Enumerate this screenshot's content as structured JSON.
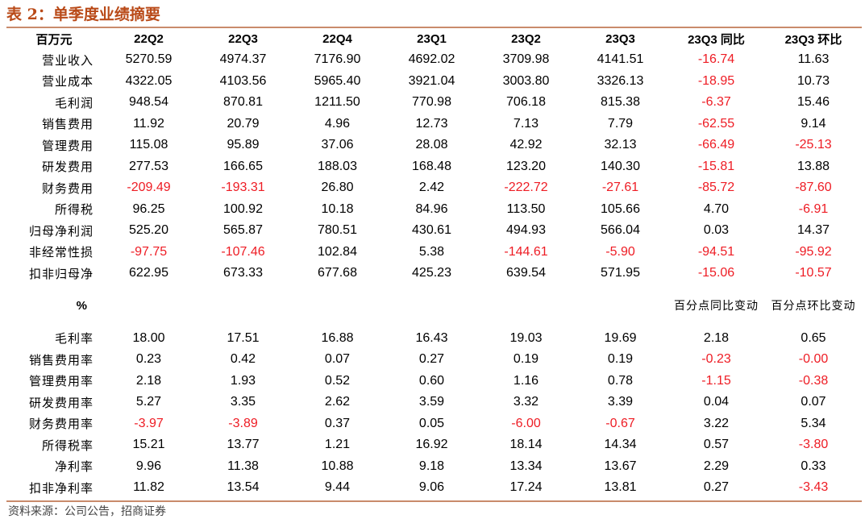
{
  "title": "表 2：单季度业绩摘要",
  "unit_label": "百万元",
  "columns": [
    "22Q2",
    "22Q3",
    "22Q4",
    "23Q1",
    "23Q2",
    "23Q3",
    "23Q3 同比",
    "23Q3 环比"
  ],
  "rows": [
    {
      "label": "营业收入",
      "values": [
        "5270.59",
        "4974.37",
        "7176.90",
        "4692.02",
        "3709.98",
        "4141.51",
        "-16.74",
        "11.63"
      ]
    },
    {
      "label": "营业成本",
      "values": [
        "4322.05",
        "4103.56",
        "5965.40",
        "3921.04",
        "3003.80",
        "3326.13",
        "-18.95",
        "10.73"
      ]
    },
    {
      "label": "毛利润",
      "values": [
        "948.54",
        "870.81",
        "1211.50",
        "770.98",
        "706.18",
        "815.38",
        "-6.37",
        "15.46"
      ]
    },
    {
      "label": "销售费用",
      "values": [
        "11.92",
        "20.79",
        "4.96",
        "12.73",
        "7.13",
        "7.79",
        "-62.55",
        "9.14"
      ]
    },
    {
      "label": "管理费用",
      "values": [
        "115.08",
        "95.89",
        "37.06",
        "28.08",
        "42.92",
        "32.13",
        "-66.49",
        "-25.13"
      ]
    },
    {
      "label": "研发费用",
      "values": [
        "277.53",
        "166.65",
        "188.03",
        "168.48",
        "123.20",
        "140.30",
        "-15.81",
        "13.88"
      ]
    },
    {
      "label": "财务费用",
      "values": [
        "-209.49",
        "-193.31",
        "26.80",
        "2.42",
        "-222.72",
        "-27.61",
        "-85.72",
        "-87.60"
      ]
    },
    {
      "label": "所得税",
      "values": [
        "96.25",
        "100.92",
        "10.18",
        "84.96",
        "113.50",
        "105.66",
        "4.70",
        "-6.91"
      ]
    },
    {
      "label": "归母净利润",
      "values": [
        "525.20",
        "565.87",
        "780.51",
        "430.61",
        "494.93",
        "566.04",
        "0.03",
        "14.37"
      ]
    },
    {
      "label": "非经常性损",
      "values": [
        "-97.75",
        "-107.46",
        "102.84",
        "5.38",
        "-144.61",
        "-5.90",
        "-94.51",
        "-95.92"
      ]
    },
    {
      "label": "扣非归母净",
      "values": [
        "622.95",
        "673.33",
        "677.68",
        "425.23",
        "639.54",
        "571.95",
        "-15.06",
        "-10.57"
      ]
    }
  ],
  "pct_header": {
    "label": "%",
    "yoy_note": "百分点同比变动",
    "qoq_note": "百分点环比变动"
  },
  "pct_rows": [
    {
      "label": "毛利率",
      "values": [
        "18.00",
        "17.51",
        "16.88",
        "16.43",
        "19.03",
        "19.69",
        "2.18",
        "0.65"
      ]
    },
    {
      "label": "销售费用率",
      "values": [
        "0.23",
        "0.42",
        "0.07",
        "0.27",
        "0.19",
        "0.19",
        "-0.23",
        "-0.00"
      ]
    },
    {
      "label": "管理费用率",
      "values": [
        "2.18",
        "1.93",
        "0.52",
        "0.60",
        "1.16",
        "0.78",
        "-1.15",
        "-0.38"
      ]
    },
    {
      "label": "研发费用率",
      "values": [
        "5.27",
        "3.35",
        "2.62",
        "3.59",
        "3.32",
        "3.39",
        "0.04",
        "0.07"
      ]
    },
    {
      "label": "财务费用率",
      "values": [
        "-3.97",
        "-3.89",
        "0.37",
        "0.05",
        "-6.00",
        "-0.67",
        "3.22",
        "5.34"
      ]
    },
    {
      "label": "所得税率",
      "values": [
        "15.21",
        "13.77",
        "1.21",
        "16.92",
        "18.14",
        "14.34",
        "0.57",
        "-3.80"
      ]
    },
    {
      "label": "净利率",
      "values": [
        "9.96",
        "11.38",
        "10.88",
        "9.18",
        "13.34",
        "13.67",
        "2.29",
        "0.33"
      ]
    },
    {
      "label": "扣非净利率",
      "values": [
        "11.82",
        "13.54",
        "9.44",
        "9.06",
        "17.24",
        "13.81",
        "0.27",
        "-3.43"
      ]
    }
  ],
  "source": "资料来源：公司公告，招商证券",
  "colors": {
    "accent": "#b94a18",
    "rule": "#c98b6b",
    "negative": "#ee1c24"
  }
}
